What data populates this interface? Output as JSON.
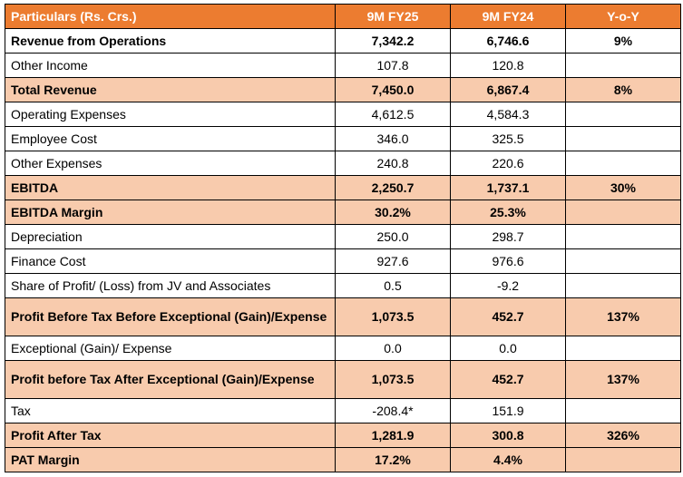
{
  "table": {
    "headers": [
      "Particulars (Rs. Crs.)",
      "9M FY25",
      "9M FY24",
      "Y-o-Y"
    ],
    "colors": {
      "header_bg": "#ec7c30",
      "header_text": "#ffffff",
      "highlight_bg": "#f8cbad"
    },
    "rows": [
      {
        "label": "Revenue from Operations",
        "fy25": "7,342.2",
        "fy24": "6,746.6",
        "yoy": "9%",
        "style": "bold"
      },
      {
        "label": "Other Income",
        "fy25": "107.8",
        "fy24": "120.8",
        "yoy": "",
        "style": "plain"
      },
      {
        "label": "Total Revenue",
        "fy25": "7,450.0",
        "fy24": "6,867.4",
        "yoy": "8%",
        "style": "highlight"
      },
      {
        "label": "Operating Expenses",
        "fy25": "4,612.5",
        "fy24": "4,584.3",
        "yoy": "",
        "style": "plain"
      },
      {
        "label": "Employee Cost",
        "fy25": "346.0",
        "fy24": "325.5",
        "yoy": "",
        "style": "plain"
      },
      {
        "label": "Other Expenses",
        "fy25": "240.8",
        "fy24": "220.6",
        "yoy": "",
        "style": "plain"
      },
      {
        "label": "EBITDA",
        "fy25": "2,250.7",
        "fy24": "1,737.1",
        "yoy": "30%",
        "style": "highlight"
      },
      {
        "label": "EBITDA Margin",
        "fy25": "30.2%",
        "fy24": "25.3%",
        "yoy": "",
        "style": "highlight"
      },
      {
        "label": "Depreciation",
        "fy25": "250.0",
        "fy24": "298.7",
        "yoy": "",
        "style": "plain"
      },
      {
        "label": "Finance Cost",
        "fy25": "927.6",
        "fy24": "976.6",
        "yoy": "",
        "style": "plain"
      },
      {
        "label": "Share of Profit/ (Loss) from JV and Associates",
        "fy25": "0.5",
        "fy24": "-9.2",
        "yoy": "",
        "style": "plain"
      },
      {
        "label": "Profit Before Tax Before Exceptional (Gain)/Expense",
        "fy25": "1,073.5",
        "fy24": "452.7",
        "yoy": "137%",
        "style": "highlight-tall"
      },
      {
        "label": "Exceptional (Gain)/ Expense",
        "fy25": "0.0",
        "fy24": "0.0",
        "yoy": "",
        "style": "plain"
      },
      {
        "label": "Profit before Tax After Exceptional (Gain)/Expense",
        "fy25": "1,073.5",
        "fy24": "452.7",
        "yoy": "137%",
        "style": "highlight-tall"
      },
      {
        "label": "Tax",
        "fy25": "-208.4*",
        "fy24": "151.9",
        "yoy": "",
        "style": "plain"
      },
      {
        "label": "Profit After Tax",
        "fy25": "1,281.9",
        "fy24": "300.8",
        "yoy": "326%",
        "style": "highlight"
      },
      {
        "label": "PAT Margin",
        "fy25": "17.2%",
        "fy24": "4.4%",
        "yoy": "",
        "style": "highlight"
      }
    ]
  }
}
